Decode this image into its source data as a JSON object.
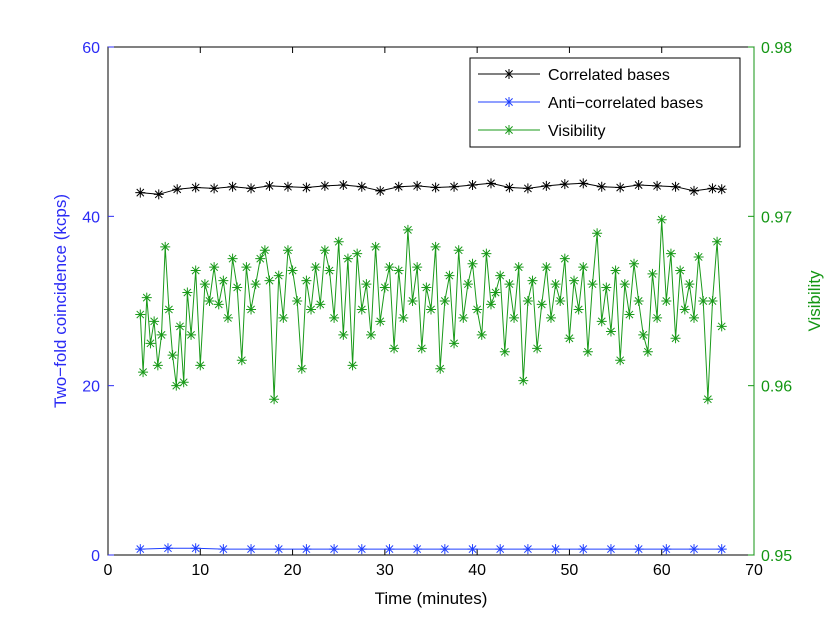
{
  "chart_data": {
    "type": "line",
    "title": "",
    "xlabel": "Time (minutes)",
    "ylabel_left": "Two−fold coincidence (kcps)",
    "ylabel_right": "Visibility",
    "xlim": [
      0,
      70
    ],
    "ylim_left": [
      0,
      60
    ],
    "ylim_right": [
      0.95,
      0.98
    ],
    "x_ticks": [
      "0",
      "10",
      "20",
      "30",
      "40",
      "50",
      "60",
      "70"
    ],
    "y_left_ticks": [
      "0",
      "20",
      "40",
      "60"
    ],
    "y_right_ticks": [
      "0.95",
      "0.96",
      "0.97",
      "0.98"
    ],
    "grid": false,
    "legend_position": "top-right",
    "colors": {
      "correlated": "#000000",
      "anticorrelated": "#1f3fff",
      "visibility": "#1a9a1a",
      "left_axis": "#2b2bf5",
      "right_axis": "#139613"
    },
    "series": [
      {
        "name": "Correlated bases",
        "axis": "left",
        "x": [
          3.5,
          5.5,
          7.5,
          9.5,
          11.5,
          13.5,
          15.5,
          17.5,
          19.5,
          21.5,
          23.5,
          25.5,
          27.5,
          29.5,
          31.5,
          33.5,
          35.5,
          37.5,
          39.5,
          41.5,
          43.5,
          45.5,
          47.5,
          49.5,
          51.5,
          53.5,
          55.5,
          57.5,
          59.5,
          61.5,
          63.5,
          65.5,
          66.5
        ],
        "values": [
          42.8,
          42.6,
          43.2,
          43.4,
          43.3,
          43.5,
          43.3,
          43.6,
          43.5,
          43.4,
          43.6,
          43.7,
          43.5,
          43.0,
          43.5,
          43.6,
          43.4,
          43.5,
          43.7,
          43.9,
          43.4,
          43.3,
          43.6,
          43.8,
          43.9,
          43.5,
          43.4,
          43.7,
          43.6,
          43.5,
          43.0,
          43.3,
          43.2
        ]
      },
      {
        "name": "Anti−correlated bases",
        "axis": "left",
        "x": [
          3.5,
          6.5,
          9.5,
          12.5,
          15.5,
          18.5,
          21.5,
          24.5,
          27.5,
          30.5,
          33.5,
          36.5,
          39.5,
          42.5,
          45.5,
          48.5,
          51.5,
          54.5,
          57.5,
          60.5,
          63.5,
          66.5
        ],
        "values": [
          0.7,
          0.8,
          0.8,
          0.7,
          0.7,
          0.7,
          0.7,
          0.7,
          0.7,
          0.7,
          0.7,
          0.7,
          0.7,
          0.7,
          0.7,
          0.7,
          0.7,
          0.7,
          0.7,
          0.7,
          0.7,
          0.7
        ]
      },
      {
        "name": "Visibility",
        "axis": "right",
        "x": [
          3.5,
          3.8,
          4.2,
          4.6,
          5.0,
          5.4,
          5.8,
          6.2,
          6.6,
          7.0,
          7.4,
          7.8,
          8.2,
          8.6,
          9.0,
          9.5,
          10.0,
          10.5,
          11.0,
          11.5,
          12.0,
          12.5,
          13.0,
          13.5,
          14.0,
          14.5,
          15.0,
          15.5,
          16.0,
          16.5,
          17.0,
          17.5,
          18.0,
          18.5,
          19.0,
          19.5,
          20.0,
          20.5,
          21.0,
          21.5,
          22.0,
          22.5,
          23.0,
          23.5,
          24.0,
          24.5,
          25.0,
          25.5,
          26.0,
          26.5,
          27.0,
          27.5,
          28.0,
          28.5,
          29.0,
          29.5,
          30.0,
          30.5,
          31.0,
          31.5,
          32.0,
          32.5,
          33.0,
          33.5,
          34.0,
          34.5,
          35.0,
          35.5,
          36.0,
          36.5,
          37.0,
          37.5,
          38.0,
          38.5,
          39.0,
          39.5,
          40.0,
          40.5,
          41.0,
          41.5,
          42.0,
          42.5,
          43.0,
          43.5,
          44.0,
          44.5,
          45.0,
          45.5,
          46.0,
          46.5,
          47.0,
          47.5,
          48.0,
          48.5,
          49.0,
          49.5,
          50.0,
          50.5,
          51.0,
          51.5,
          52.0,
          52.5,
          53.0,
          53.5,
          54.0,
          54.5,
          55.0,
          55.5,
          56.0,
          56.5,
          57.0,
          57.5,
          58.0,
          58.5,
          59.0,
          59.5,
          60.0,
          60.5,
          61.0,
          61.5,
          62.0,
          62.5,
          63.0,
          63.5,
          64.0,
          64.5,
          65.0,
          65.5,
          66.0,
          66.5
        ],
        "values": [
          0.9642,
          0.9608,
          0.9652,
          0.9625,
          0.9638,
          0.9612,
          0.963,
          0.9682,
          0.9645,
          0.9618,
          0.96,
          0.9635,
          0.9602,
          0.9655,
          0.963,
          0.9668,
          0.9612,
          0.966,
          0.965,
          0.967,
          0.9648,
          0.9662,
          0.964,
          0.9675,
          0.9658,
          0.9615,
          0.967,
          0.9645,
          0.966,
          0.9675,
          0.968,
          0.9662,
          0.9592,
          0.9665,
          0.964,
          0.968,
          0.9668,
          0.965,
          0.961,
          0.9662,
          0.9645,
          0.967,
          0.9648,
          0.968,
          0.9668,
          0.964,
          0.9685,
          0.963,
          0.9675,
          0.9612,
          0.9678,
          0.9645,
          0.966,
          0.963,
          0.9682,
          0.9638,
          0.9658,
          0.967,
          0.9622,
          0.9668,
          0.964,
          0.9692,
          0.965,
          0.967,
          0.9622,
          0.9658,
          0.9645,
          0.9682,
          0.961,
          0.965,
          0.9665,
          0.9625,
          0.968,
          0.964,
          0.966,
          0.9672,
          0.9645,
          0.963,
          0.9678,
          0.9648,
          0.9655,
          0.9665,
          0.962,
          0.966,
          0.964,
          0.967,
          0.9603,
          0.965,
          0.9662,
          0.9622,
          0.9648,
          0.967,
          0.964,
          0.966,
          0.965,
          0.9675,
          0.9628,
          0.9662,
          0.9645,
          0.967,
          0.962,
          0.966,
          0.969,
          0.9638,
          0.9658,
          0.9632,
          0.9668,
          0.9615,
          0.966,
          0.9642,
          0.9672,
          0.965,
          0.963,
          0.962,
          0.9666,
          0.964,
          0.9698,
          0.965,
          0.9678,
          0.9628,
          0.9668,
          0.9645,
          0.966,
          0.964,
          0.9676,
          0.965,
          0.9592,
          0.965,
          0.9685,
          0.9635
        ]
      }
    ]
  }
}
